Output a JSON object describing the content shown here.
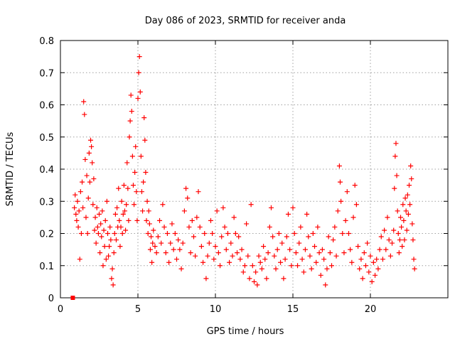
{
  "chart_data": {
    "type": "scatter",
    "title": "Day 086 of 2023, SRMTID for receiver anda",
    "xlabel": "GPS time / hours",
    "ylabel": "SRMTID / TECUs",
    "xlim": [
      0,
      25
    ],
    "ylim": [
      0,
      0.8
    ],
    "xticks": [
      0,
      5,
      10,
      15,
      20
    ],
    "yticks": [
      0,
      0.1,
      0.2,
      0.3,
      0.4,
      0.5,
      0.6,
      0.7,
      0.8
    ],
    "xtick_labels": [
      "0",
      "5",
      "10",
      "15",
      "20"
    ],
    "ytick_labels": [
      "0",
      "0.1",
      "0.2",
      "0.3",
      "0.4",
      "0.5",
      "0.6",
      "0.7",
      "0.8"
    ],
    "grid": true,
    "marker": "+",
    "color": "#ff0000",
    "square_marker_point": {
      "x": 0.8,
      "y": 0.0
    },
    "series": [
      {
        "name": "SRMTID",
        "points": [
          [
            0.9,
            0.28
          ],
          [
            0.95,
            0.32
          ],
          [
            1.0,
            0.26
          ],
          [
            1.05,
            0.24
          ],
          [
            1.1,
            0.3
          ],
          [
            1.15,
            0.22
          ],
          [
            1.2,
            0.27
          ],
          [
            1.25,
            0.12
          ],
          [
            1.3,
            0.33
          ],
          [
            1.35,
            0.2
          ],
          [
            1.4,
            0.36
          ],
          [
            1.45,
            0.28
          ],
          [
            1.5,
            0.61
          ],
          [
            1.55,
            0.57
          ],
          [
            1.6,
            0.43
          ],
          [
            1.65,
            0.25
          ],
          [
            1.7,
            0.38
          ],
          [
            1.75,
            0.2
          ],
          [
            1.8,
            0.31
          ],
          [
            1.85,
            0.45
          ],
          [
            1.9,
            0.36
          ],
          [
            1.95,
            0.49
          ],
          [
            2.0,
            0.47
          ],
          [
            2.05,
            0.42
          ],
          [
            2.1,
            0.29
          ],
          [
            2.15,
            0.37
          ],
          [
            2.2,
            0.21
          ],
          [
            2.25,
            0.25
          ],
          [
            2.3,
            0.17
          ],
          [
            2.35,
            0.28
          ],
          [
            2.4,
            0.22
          ],
          [
            2.45,
            0.2
          ],
          [
            2.5,
            0.26
          ],
          [
            2.55,
            0.14
          ],
          [
            2.6,
            0.23
          ],
          [
            2.65,
            0.19
          ],
          [
            2.7,
            0.27
          ],
          [
            2.75,
            0.1
          ],
          [
            2.8,
            0.21
          ],
          [
            2.85,
            0.16
          ],
          [
            2.9,
            0.24
          ],
          [
            2.95,
            0.12
          ],
          [
            3.0,
            0.3
          ],
          [
            3.05,
            0.2
          ],
          [
            3.1,
            0.13
          ],
          [
            3.15,
            0.16
          ],
          [
            3.2,
            0.22
          ],
          [
            3.25,
            0.18
          ],
          [
            3.3,
            0.06
          ],
          [
            3.35,
            0.09
          ],
          [
            3.4,
            0.04
          ],
          [
            3.45,
            0.14
          ],
          [
            3.5,
            0.2
          ],
          [
            3.55,
            0.26
          ],
          [
            3.6,
            0.18
          ],
          [
            3.65,
            0.28
          ],
          [
            3.7,
            0.22
          ],
          [
            3.75,
            0.34
          ],
          [
            3.8,
            0.24
          ],
          [
            3.85,
            0.16
          ],
          [
            3.9,
            0.22
          ],
          [
            3.95,
            0.3
          ],
          [
            4.0,
            0.2
          ],
          [
            4.05,
            0.26
          ],
          [
            4.1,
            0.35
          ],
          [
            4.15,
            0.27
          ],
          [
            4.2,
            0.21
          ],
          [
            4.25,
            0.29
          ],
          [
            4.3,
            0.42
          ],
          [
            4.35,
            0.34
          ],
          [
            4.4,
            0.24
          ],
          [
            4.45,
            0.5
          ],
          [
            4.5,
            0.55
          ],
          [
            4.55,
            0.63
          ],
          [
            4.6,
            0.58
          ],
          [
            4.65,
            0.44
          ],
          [
            4.7,
            0.35
          ],
          [
            4.75,
            0.29
          ],
          [
            4.8,
            0.39
          ],
          [
            4.85,
            0.47
          ],
          [
            4.9,
            0.33
          ],
          [
            4.95,
            0.24
          ],
          [
            5.0,
            0.62
          ],
          [
            5.05,
            0.7
          ],
          [
            5.1,
            0.75
          ],
          [
            5.15,
            0.64
          ],
          [
            5.2,
            0.44
          ],
          [
            5.25,
            0.33
          ],
          [
            5.3,
            0.27
          ],
          [
            5.35,
            0.36
          ],
          [
            5.4,
            0.56
          ],
          [
            5.45,
            0.49
          ],
          [
            5.5,
            0.39
          ],
          [
            5.55,
            0.24
          ],
          [
            5.6,
            0.3
          ],
          [
            5.65,
            0.2
          ],
          [
            5.7,
            0.27
          ],
          [
            5.75,
            0.23
          ],
          [
            5.8,
            0.15
          ],
          [
            5.85,
            0.19
          ],
          [
            5.9,
            0.11
          ],
          [
            5.95,
            0.17
          ],
          [
            6.0,
            0.21
          ],
          [
            6.1,
            0.16
          ],
          [
            6.2,
            0.14
          ],
          [
            6.3,
            0.19
          ],
          [
            6.4,
            0.24
          ],
          [
            6.5,
            0.17
          ],
          [
            6.6,
            0.29
          ],
          [
            6.7,
            0.22
          ],
          [
            6.8,
            0.14
          ],
          [
            6.9,
            0.2
          ],
          [
            7.0,
            0.11
          ],
          [
            7.1,
            0.17
          ],
          [
            7.2,
            0.23
          ],
          [
            7.3,
            0.15
          ],
          [
            7.4,
            0.2
          ],
          [
            7.5,
            0.12
          ],
          [
            7.6,
            0.18
          ],
          [
            7.7,
            0.15
          ],
          [
            7.8,
            0.09
          ],
          [
            7.9,
            0.17
          ],
          [
            8.0,
            0.27
          ],
          [
            8.1,
            0.34
          ],
          [
            8.2,
            0.31
          ],
          [
            8.3,
            0.22
          ],
          [
            8.4,
            0.14
          ],
          [
            8.5,
            0.24
          ],
          [
            8.6,
            0.19
          ],
          [
            8.7,
            0.13
          ],
          [
            8.8,
            0.25
          ],
          [
            8.9,
            0.33
          ],
          [
            9.0,
            0.22
          ],
          [
            9.1,
            0.16
          ],
          [
            9.2,
            0.11
          ],
          [
            9.3,
            0.2
          ],
          [
            9.4,
            0.06
          ],
          [
            9.5,
            0.13
          ],
          [
            9.6,
            0.17
          ],
          [
            9.7,
            0.24
          ],
          [
            9.8,
            0.2
          ],
          [
            9.9,
            0.12
          ],
          [
            10.0,
            0.16
          ],
          [
            10.1,
            0.27
          ],
          [
            10.2,
            0.14
          ],
          [
            10.3,
            0.1
          ],
          [
            10.4,
            0.19
          ],
          [
            10.5,
            0.28
          ],
          [
            10.6,
            0.22
          ],
          [
            10.7,
            0.15
          ],
          [
            10.8,
            0.2
          ],
          [
            10.9,
            0.11
          ],
          [
            11.0,
            0.17
          ],
          [
            11.1,
            0.13
          ],
          [
            11.2,
            0.25
          ],
          [
            11.3,
            0.2
          ],
          [
            11.4,
            0.14
          ],
          [
            11.5,
            0.19
          ],
          [
            11.6,
            0.12
          ],
          [
            11.7,
            0.15
          ],
          [
            11.8,
            0.08
          ],
          [
            11.9,
            0.1
          ],
          [
            12.0,
            0.23
          ],
          [
            12.1,
            0.13
          ],
          [
            12.2,
            0.06
          ],
          [
            12.3,
            0.29
          ],
          [
            12.4,
            0.1
          ],
          [
            12.5,
            0.05
          ],
          [
            12.6,
            0.08
          ],
          [
            12.7,
            0.04
          ],
          [
            12.8,
            0.13
          ],
          [
            12.9,
            0.11
          ],
          [
            13.0,
            0.09
          ],
          [
            13.1,
            0.16
          ],
          [
            13.2,
            0.12
          ],
          [
            13.3,
            0.06
          ],
          [
            13.4,
            0.14
          ],
          [
            13.5,
            0.22
          ],
          [
            13.6,
            0.28
          ],
          [
            13.7,
            0.19
          ],
          [
            13.8,
            0.13
          ],
          [
            13.9,
            0.09
          ],
          [
            14.0,
            0.15
          ],
          [
            14.1,
            0.2
          ],
          [
            14.2,
            0.11
          ],
          [
            14.3,
            0.17
          ],
          [
            14.4,
            0.06
          ],
          [
            14.5,
            0.12
          ],
          [
            14.6,
            0.19
          ],
          [
            14.7,
            0.26
          ],
          [
            14.8,
            0.15
          ],
          [
            14.9,
            0.1
          ],
          [
            15.0,
            0.28
          ],
          [
            15.1,
            0.2
          ],
          [
            15.2,
            0.14
          ],
          [
            15.3,
            0.1
          ],
          [
            15.4,
            0.17
          ],
          [
            15.5,
            0.22
          ],
          [
            15.6,
            0.12
          ],
          [
            15.7,
            0.08
          ],
          [
            15.8,
            0.15
          ],
          [
            15.9,
            0.26
          ],
          [
            16.0,
            0.19
          ],
          [
            16.1,
            0.13
          ],
          [
            16.2,
            0.09
          ],
          [
            16.3,
            0.2
          ],
          [
            16.4,
            0.16
          ],
          [
            16.5,
            0.11
          ],
          [
            16.6,
            0.22
          ],
          [
            16.7,
            0.14
          ],
          [
            16.8,
            0.07
          ],
          [
            16.9,
            0.15
          ],
          [
            17.0,
            0.12
          ],
          [
            17.1,
            0.04
          ],
          [
            17.2,
            0.09
          ],
          [
            17.3,
            0.19
          ],
          [
            17.4,
            0.14
          ],
          [
            17.5,
            0.1
          ],
          [
            17.6,
            0.18
          ],
          [
            17.7,
            0.22
          ],
          [
            17.8,
            0.13
          ],
          [
            17.9,
            0.27
          ],
          [
            18.0,
            0.41
          ],
          [
            18.05,
            0.36
          ],
          [
            18.1,
            0.3
          ],
          [
            18.2,
            0.2
          ],
          [
            18.3,
            0.14
          ],
          [
            18.4,
            0.24
          ],
          [
            18.5,
            0.33
          ],
          [
            18.6,
            0.2
          ],
          [
            18.7,
            0.15
          ],
          [
            18.8,
            0.11
          ],
          [
            18.9,
            0.25
          ],
          [
            19.0,
            0.35
          ],
          [
            19.1,
            0.29
          ],
          [
            19.2,
            0.16
          ],
          [
            19.3,
            0.09
          ],
          [
            19.4,
            0.12
          ],
          [
            19.5,
            0.06
          ],
          [
            19.6,
            0.14
          ],
          [
            19.7,
            0.1
          ],
          [
            19.8,
            0.17
          ],
          [
            19.9,
            0.08
          ],
          [
            20.0,
            0.13
          ],
          [
            20.1,
            0.05
          ],
          [
            20.2,
            0.11
          ],
          [
            20.3,
            0.07
          ],
          [
            20.4,
            0.12
          ],
          [
            20.5,
            0.09
          ],
          [
            20.6,
            0.15
          ],
          [
            20.7,
            0.19
          ],
          [
            20.8,
            0.12
          ],
          [
            20.9,
            0.21
          ],
          [
            21.0,
            0.15
          ],
          [
            21.1,
            0.25
          ],
          [
            21.2,
            0.18
          ],
          [
            21.3,
            0.13
          ],
          [
            21.4,
            0.17
          ],
          [
            21.5,
            0.21
          ],
          [
            21.55,
            0.34
          ],
          [
            21.6,
            0.44
          ],
          [
            21.65,
            0.48
          ],
          [
            21.7,
            0.38
          ],
          [
            21.75,
            0.27
          ],
          [
            21.8,
            0.2
          ],
          [
            21.85,
            0.14
          ],
          [
            21.9,
            0.18
          ],
          [
            21.95,
            0.25
          ],
          [
            22.0,
            0.22
          ],
          [
            22.05,
            0.16
          ],
          [
            22.1,
            0.29
          ],
          [
            22.15,
            0.24
          ],
          [
            22.2,
            0.18
          ],
          [
            22.25,
            0.31
          ],
          [
            22.3,
            0.27
          ],
          [
            22.35,
            0.21
          ],
          [
            22.4,
            0.32
          ],
          [
            22.45,
            0.26
          ],
          [
            22.5,
            0.35
          ],
          [
            22.55,
            0.29
          ],
          [
            22.6,
            0.41
          ],
          [
            22.65,
            0.37
          ],
          [
            22.7,
            0.23
          ],
          [
            22.75,
            0.18
          ],
          [
            22.8,
            0.12
          ],
          [
            22.85,
            0.09
          ]
        ]
      }
    ]
  }
}
